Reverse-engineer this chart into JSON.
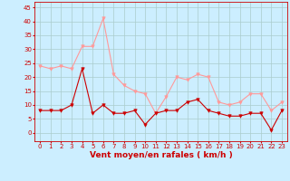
{
  "x": [
    0,
    1,
    2,
    3,
    4,
    5,
    6,
    7,
    8,
    9,
    10,
    11,
    12,
    13,
    14,
    15,
    16,
    17,
    18,
    19,
    20,
    21,
    22,
    23
  ],
  "rafales": [
    24,
    23,
    24,
    23,
    31,
    31,
    41,
    21,
    17,
    15,
    14,
    7,
    13,
    20,
    19,
    21,
    20,
    11,
    10,
    11,
    14,
    14,
    8,
    11
  ],
  "moyen": [
    8,
    8,
    8,
    10,
    23,
    7,
    10,
    7,
    7,
    8,
    3,
    7,
    8,
    8,
    11,
    12,
    8,
    7,
    6,
    6,
    7,
    7,
    1,
    8
  ],
  "bg_color": "#cceeff",
  "grid_color": "#aacccc",
  "line_color_rafales": "#ff9999",
  "line_color_moyen": "#cc0000",
  "xlabel": "Vent moyen/en rafales ( km/h )",
  "xlabel_color": "#cc0000",
  "xlabel_fontsize": 6.5,
  "tick_color": "#cc0000",
  "tick_fontsize": 5,
  "yticks": [
    0,
    5,
    10,
    15,
    20,
    25,
    30,
    35,
    40,
    45
  ],
  "ylim": [
    -3,
    47
  ],
  "xlim": [
    -0.5,
    23.5
  ]
}
